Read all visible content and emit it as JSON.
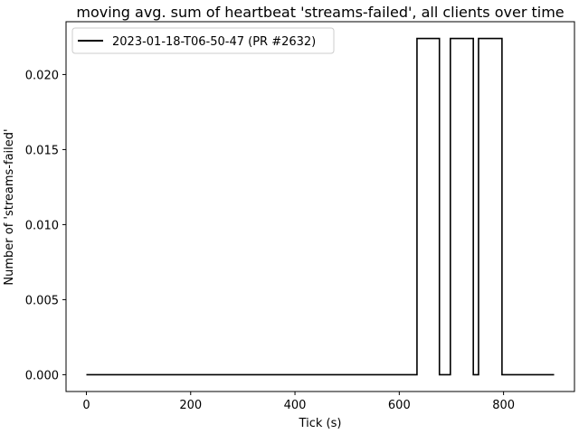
{
  "chart_data": {
    "type": "line",
    "title": "moving avg. sum of heartbeat 'streams-failed', all clients over time",
    "xlabel": "Tick (s)",
    "ylabel": "Number of 'streams-failed'",
    "xlim": [
      -39,
      936
    ],
    "ylim": [
      -0.00112,
      0.02352
    ],
    "xticks": [
      0,
      200,
      400,
      600,
      800
    ],
    "xtick_labels": [
      "0",
      "200",
      "400",
      "600",
      "800"
    ],
    "yticks": [
      0.0,
      0.005,
      0.01,
      0.015,
      0.02
    ],
    "ytick_labels": [
      "0.000",
      "0.005",
      "0.010",
      "0.015",
      "0.020"
    ],
    "grid": false,
    "legend_position": "top-left",
    "line_color": "#000000",
    "series": [
      {
        "name": "2023-01-18-T06-50-47 (PR #2632)",
        "step": true,
        "x": [
          0,
          634,
          634,
          677,
          677,
          698,
          698,
          742,
          742,
          752,
          752,
          797,
          797,
          897
        ],
        "y": [
          0,
          0,
          0.0224,
          0.0224,
          0,
          0,
          0.0224,
          0.0224,
          0,
          0,
          0.0224,
          0.0224,
          0,
          0
        ]
      }
    ]
  }
}
